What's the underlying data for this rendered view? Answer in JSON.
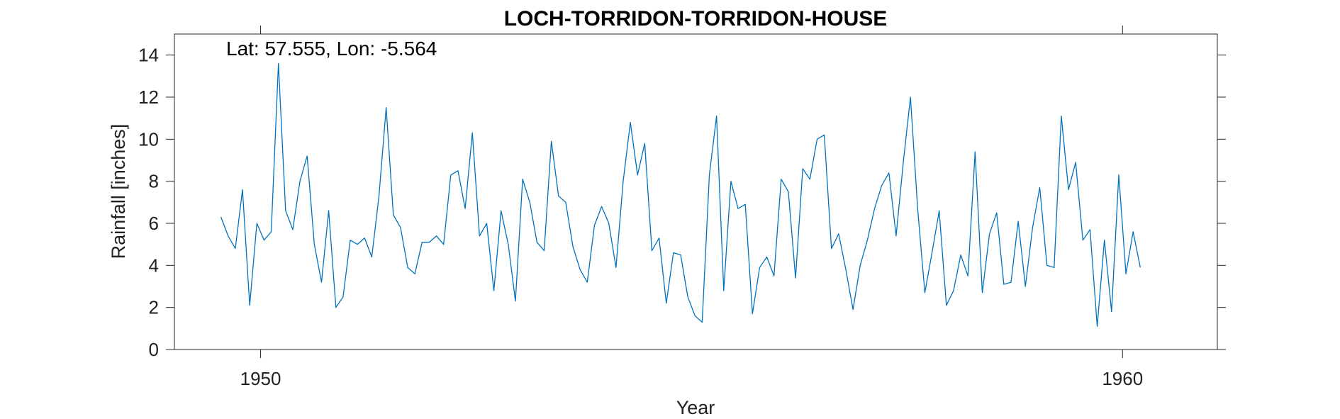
{
  "chart_data": {
    "type": "line",
    "title": "LOCH-TORRIDON-TORRIDON-HOUSE",
    "annotation": "Lat: 57.555, Lon: -5.564",
    "xlabel": "Year",
    "ylabel": "Rainfall [inches]",
    "xlim": [
      1949,
      1961.1
    ],
    "ylim": [
      0,
      15
    ],
    "x_ticks": [
      1950,
      1960
    ],
    "y_ticks": [
      0,
      2,
      4,
      6,
      8,
      10,
      12,
      14
    ],
    "grid": false,
    "line_color": "#0072BD",
    "series": [
      {
        "x_start": 1949.54,
        "x_step": 0.08333,
        "values": [
          6.3,
          5.4,
          4.8,
          7.6,
          2.1,
          6.0,
          5.2,
          5.6,
          13.6,
          6.6,
          5.7,
          8.0,
          9.2,
          5.0,
          3.2,
          6.6,
          2.0,
          2.5,
          5.2,
          5.0,
          5.3,
          4.4,
          7.3,
          11.5,
          6.4,
          5.8,
          3.9,
          3.6,
          5.1,
          5.1,
          5.4,
          5.0,
          8.3,
          8.5,
          6.7,
          10.3,
          5.4,
          6.0,
          2.8,
          6.6,
          5.0,
          2.3,
          8.1,
          7.0,
          5.1,
          4.7,
          9.9,
          7.3,
          7.0,
          4.9,
          3.8,
          3.2,
          5.9,
          6.8,
          6.0,
          3.9,
          8.0,
          10.8,
          8.3,
          9.8,
          4.7,
          5.3,
          2.2,
          4.6,
          4.5,
          2.5,
          1.6,
          1.3,
          8.3,
          11.1,
          2.8,
          8.0,
          6.7,
          6.9,
          1.7,
          3.9,
          4.4,
          3.5,
          8.1,
          7.5,
          3.4,
          8.6,
          8.1,
          10.0,
          10.2,
          4.8,
          5.5,
          3.8,
          1.9,
          4.0,
          5.2,
          6.7,
          7.8,
          8.4,
          5.4,
          8.9,
          12.0,
          6.7,
          2.7,
          4.6,
          6.6,
          2.1,
          2.8,
          4.5,
          3.5,
          9.4,
          2.7,
          5.5,
          6.5,
          3.1,
          3.2,
          6.1,
          3.0,
          5.8,
          7.7,
          4.0,
          3.9,
          11.1,
          7.6,
          8.9,
          5.2,
          5.7,
          1.1,
          5.2,
          1.8,
          8.3,
          3.6,
          5.6,
          3.9
        ]
      }
    ]
  }
}
